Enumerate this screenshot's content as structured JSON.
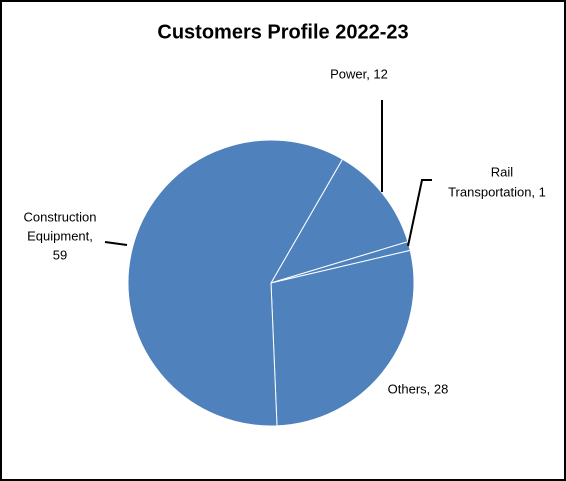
{
  "chart_data": {
    "type": "pie",
    "title": "Customers Profile 2022-23",
    "values": [
      12,
      1,
      28,
      59
    ],
    "value_labels": [
      [
        "Power, 12"
      ],
      [
        "Rail",
        "Transportation, 1"
      ],
      [
        "Others, 28"
      ],
      [
        "Construction",
        "Equipment,",
        "59"
      ]
    ],
    "color": "#4f81bd"
  }
}
